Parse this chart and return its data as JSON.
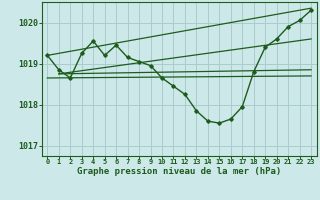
{
  "background_color": "#cce8e8",
  "grid_color": "#aacccc",
  "line_color": "#1e5c1e",
  "title": "Graphe pression niveau de la mer (hPa)",
  "xlim": [
    -0.5,
    23.5
  ],
  "ylim": [
    1016.75,
    1020.5
  ],
  "yticks": [
    1017,
    1018,
    1019,
    1020
  ],
  "xticks": [
    0,
    1,
    2,
    3,
    4,
    5,
    6,
    7,
    8,
    9,
    10,
    11,
    12,
    13,
    14,
    15,
    16,
    17,
    18,
    19,
    20,
    21,
    22,
    23
  ],
  "series": {
    "main": {
      "x": [
        0,
        1,
        2,
        3,
        4,
        5,
        6,
        7,
        8,
        9,
        10,
        11,
        12,
        13,
        14,
        15,
        16,
        17,
        18,
        19,
        20,
        21,
        22,
        23
      ],
      "y": [
        1019.2,
        1018.85,
        1018.65,
        1019.25,
        1019.55,
        1019.2,
        1019.45,
        1019.15,
        1019.05,
        1018.95,
        1018.65,
        1018.45,
        1018.25,
        1017.85,
        1017.6,
        1017.55,
        1017.65,
        1017.95,
        1018.8,
        1019.4,
        1019.6,
        1019.9,
        1020.05,
        1020.3
      ]
    },
    "flat": {
      "x": [
        0,
        23
      ],
      "y": [
        1018.65,
        1018.7
      ]
    },
    "trend1": {
      "x": [
        1,
        23
      ],
      "y": [
        1018.75,
        1018.85
      ]
    },
    "trend2": {
      "x": [
        1,
        23
      ],
      "y": [
        1018.75,
        1019.6
      ]
    },
    "trend3": {
      "x": [
        0,
        23
      ],
      "y": [
        1019.2,
        1020.35
      ]
    }
  }
}
